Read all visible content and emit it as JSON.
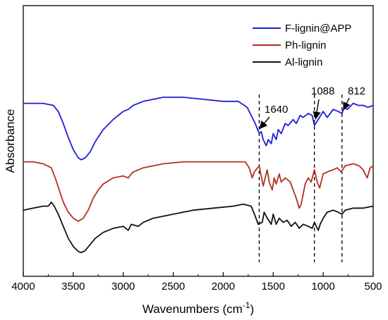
{
  "chart_data": {
    "type": "line",
    "xlabel_main": "Wavenumbers (cm",
    "xlabel_sup": "-1",
    "xlabel_end": ")",
    "ylabel": "Absorbance",
    "xlim": [
      4000,
      500
    ],
    "x_reversed": true,
    "y_ticks_shown": false,
    "grid": false,
    "legend_position": "top-right",
    "x_ticks": [
      4000,
      3500,
      3000,
      2500,
      2000,
      1500,
      1000,
      500
    ],
    "x_tick_labels": [
      "4000",
      "3500",
      "3000",
      "2500",
      "2000",
      "1500",
      "1000",
      "500"
    ],
    "annotations": [
      {
        "label": "1640",
        "x": 1640
      },
      {
        "label": "1088",
        "x": 1088
      },
      {
        "label": "812",
        "x": 812
      }
    ],
    "series": [
      {
        "name": "F-lignin@APP",
        "color": "#1f1fd6",
        "points": [
          [
            4000,
            8.3
          ],
          [
            3900,
            8.3
          ],
          [
            3800,
            8.3
          ],
          [
            3700,
            8.2
          ],
          [
            3650,
            7.9
          ],
          [
            3600,
            7.3
          ],
          [
            3550,
            6.6
          ],
          [
            3500,
            6.0
          ],
          [
            3450,
            5.6
          ],
          [
            3420,
            5.5
          ],
          [
            3380,
            5.6
          ],
          [
            3330,
            5.9
          ],
          [
            3280,
            6.4
          ],
          [
            3200,
            7.0
          ],
          [
            3100,
            7.5
          ],
          [
            3000,
            7.9
          ],
          [
            2950,
            8.0
          ],
          [
            2900,
            8.2
          ],
          [
            2800,
            8.4
          ],
          [
            2600,
            8.6
          ],
          [
            2400,
            8.6
          ],
          [
            2200,
            8.5
          ],
          [
            2000,
            8.4
          ],
          [
            1850,
            8.4
          ],
          [
            1760,
            8.1
          ],
          [
            1720,
            7.7
          ],
          [
            1680,
            7.3
          ],
          [
            1640,
            6.8
          ],
          [
            1620,
            6.9
          ],
          [
            1600,
            6.5
          ],
          [
            1570,
            6.2
          ],
          [
            1550,
            6.5
          ],
          [
            1520,
            6.3
          ],
          [
            1500,
            6.8
          ],
          [
            1470,
            6.5
          ],
          [
            1450,
            7.0
          ],
          [
            1420,
            6.8
          ],
          [
            1380,
            7.3
          ],
          [
            1350,
            7.2
          ],
          [
            1300,
            7.5
          ],
          [
            1270,
            7.3
          ],
          [
            1230,
            7.7
          ],
          [
            1200,
            7.6
          ],
          [
            1150,
            7.8
          ],
          [
            1110,
            7.7
          ],
          [
            1088,
            7.2
          ],
          [
            1050,
            7.5
          ],
          [
            1000,
            7.9
          ],
          [
            960,
            7.6
          ],
          [
            900,
            8.0
          ],
          [
            850,
            7.9
          ],
          [
            812,
            7.8
          ],
          [
            790,
            8.1
          ],
          [
            760,
            8.0
          ],
          [
            700,
            8.3
          ],
          [
            650,
            8.2
          ],
          [
            600,
            8.2
          ],
          [
            550,
            8.1
          ],
          [
            500,
            8.2
          ]
        ]
      },
      {
        "name": "Ph-lignin",
        "color": "#b33020",
        "points": [
          [
            4000,
            5.4
          ],
          [
            3900,
            5.4
          ],
          [
            3800,
            5.3
          ],
          [
            3720,
            5.1
          ],
          [
            3680,
            4.6
          ],
          [
            3640,
            4.0
          ],
          [
            3600,
            3.4
          ],
          [
            3550,
            2.9
          ],
          [
            3500,
            2.6
          ],
          [
            3450,
            2.45
          ],
          [
            3400,
            2.6
          ],
          [
            3350,
            3.0
          ],
          [
            3300,
            3.6
          ],
          [
            3250,
            4.0
          ],
          [
            3200,
            4.3
          ],
          [
            3100,
            4.6
          ],
          [
            3000,
            4.7
          ],
          [
            2950,
            4.6
          ],
          [
            2920,
            4.8
          ],
          [
            2900,
            4.9
          ],
          [
            2800,
            5.1
          ],
          [
            2600,
            5.3
          ],
          [
            2400,
            5.4
          ],
          [
            2200,
            5.4
          ],
          [
            2000,
            5.4
          ],
          [
            1850,
            5.4
          ],
          [
            1780,
            5.4
          ],
          [
            1740,
            5.1
          ],
          [
            1710,
            4.6
          ],
          [
            1690,
            4.9
          ],
          [
            1640,
            5.2
          ],
          [
            1600,
            4.2
          ],
          [
            1580,
            4.6
          ],
          [
            1560,
            5.0
          ],
          [
            1540,
            4.4
          ],
          [
            1510,
            4.0
          ],
          [
            1490,
            4.6
          ],
          [
            1470,
            4.3
          ],
          [
            1440,
            4.8
          ],
          [
            1420,
            4.4
          ],
          [
            1380,
            4.6
          ],
          [
            1330,
            4.4
          ],
          [
            1300,
            4.0
          ],
          [
            1270,
            3.6
          ],
          [
            1240,
            3.1
          ],
          [
            1220,
            3.3
          ],
          [
            1180,
            4.3
          ],
          [
            1150,
            4.6
          ],
          [
            1120,
            4.4
          ],
          [
            1088,
            5.0
          ],
          [
            1060,
            4.4
          ],
          [
            1035,
            4.1
          ],
          [
            1000,
            4.8
          ],
          [
            960,
            4.9
          ],
          [
            900,
            5.0
          ],
          [
            860,
            5.1
          ],
          [
            820,
            4.9
          ],
          [
            780,
            5.2
          ],
          [
            700,
            5.3
          ],
          [
            640,
            5.2
          ],
          [
            600,
            5.0
          ],
          [
            560,
            4.6
          ],
          [
            530,
            5.1
          ],
          [
            500,
            5.2
          ]
        ]
      },
      {
        "name": "Al-lignin",
        "color": "#111111",
        "points": [
          [
            4000,
            3.0
          ],
          [
            3900,
            3.1
          ],
          [
            3800,
            3.2
          ],
          [
            3750,
            3.2
          ],
          [
            3720,
            3.4
          ],
          [
            3690,
            3.2
          ],
          [
            3650,
            2.8
          ],
          [
            3600,
            2.2
          ],
          [
            3550,
            1.6
          ],
          [
            3500,
            1.2
          ],
          [
            3450,
            0.95
          ],
          [
            3420,
            0.9
          ],
          [
            3380,
            1.0
          ],
          [
            3330,
            1.3
          ],
          [
            3280,
            1.6
          ],
          [
            3200,
            1.9
          ],
          [
            3100,
            2.1
          ],
          [
            3000,
            2.2
          ],
          [
            2950,
            2.0
          ],
          [
            2920,
            2.3
          ],
          [
            2850,
            2.2
          ],
          [
            2800,
            2.4
          ],
          [
            2700,
            2.6
          ],
          [
            2500,
            2.8
          ],
          [
            2300,
            3.0
          ],
          [
            2100,
            3.1
          ],
          [
            1900,
            3.2
          ],
          [
            1800,
            3.3
          ],
          [
            1720,
            3.2
          ],
          [
            1680,
            2.7
          ],
          [
            1650,
            2.3
          ],
          [
            1610,
            2.4
          ],
          [
            1590,
            2.9
          ],
          [
            1560,
            2.6
          ],
          [
            1520,
            2.3
          ],
          [
            1500,
            2.8
          ],
          [
            1470,
            2.3
          ],
          [
            1440,
            2.6
          ],
          [
            1400,
            2.4
          ],
          [
            1360,
            2.5
          ],
          [
            1320,
            2.2
          ],
          [
            1280,
            2.4
          ],
          [
            1240,
            2.1
          ],
          [
            1200,
            2.3
          ],
          [
            1150,
            2.2
          ],
          [
            1110,
            2.1
          ],
          [
            1088,
            2.4
          ],
          [
            1050,
            2.0
          ],
          [
            1030,
            2.3
          ],
          [
            1000,
            2.6
          ],
          [
            960,
            2.9
          ],
          [
            900,
            3.0
          ],
          [
            850,
            2.9
          ],
          [
            812,
            2.8
          ],
          [
            780,
            3.0
          ],
          [
            700,
            3.1
          ],
          [
            600,
            3.1
          ],
          [
            500,
            3.2
          ]
        ]
      }
    ]
  }
}
